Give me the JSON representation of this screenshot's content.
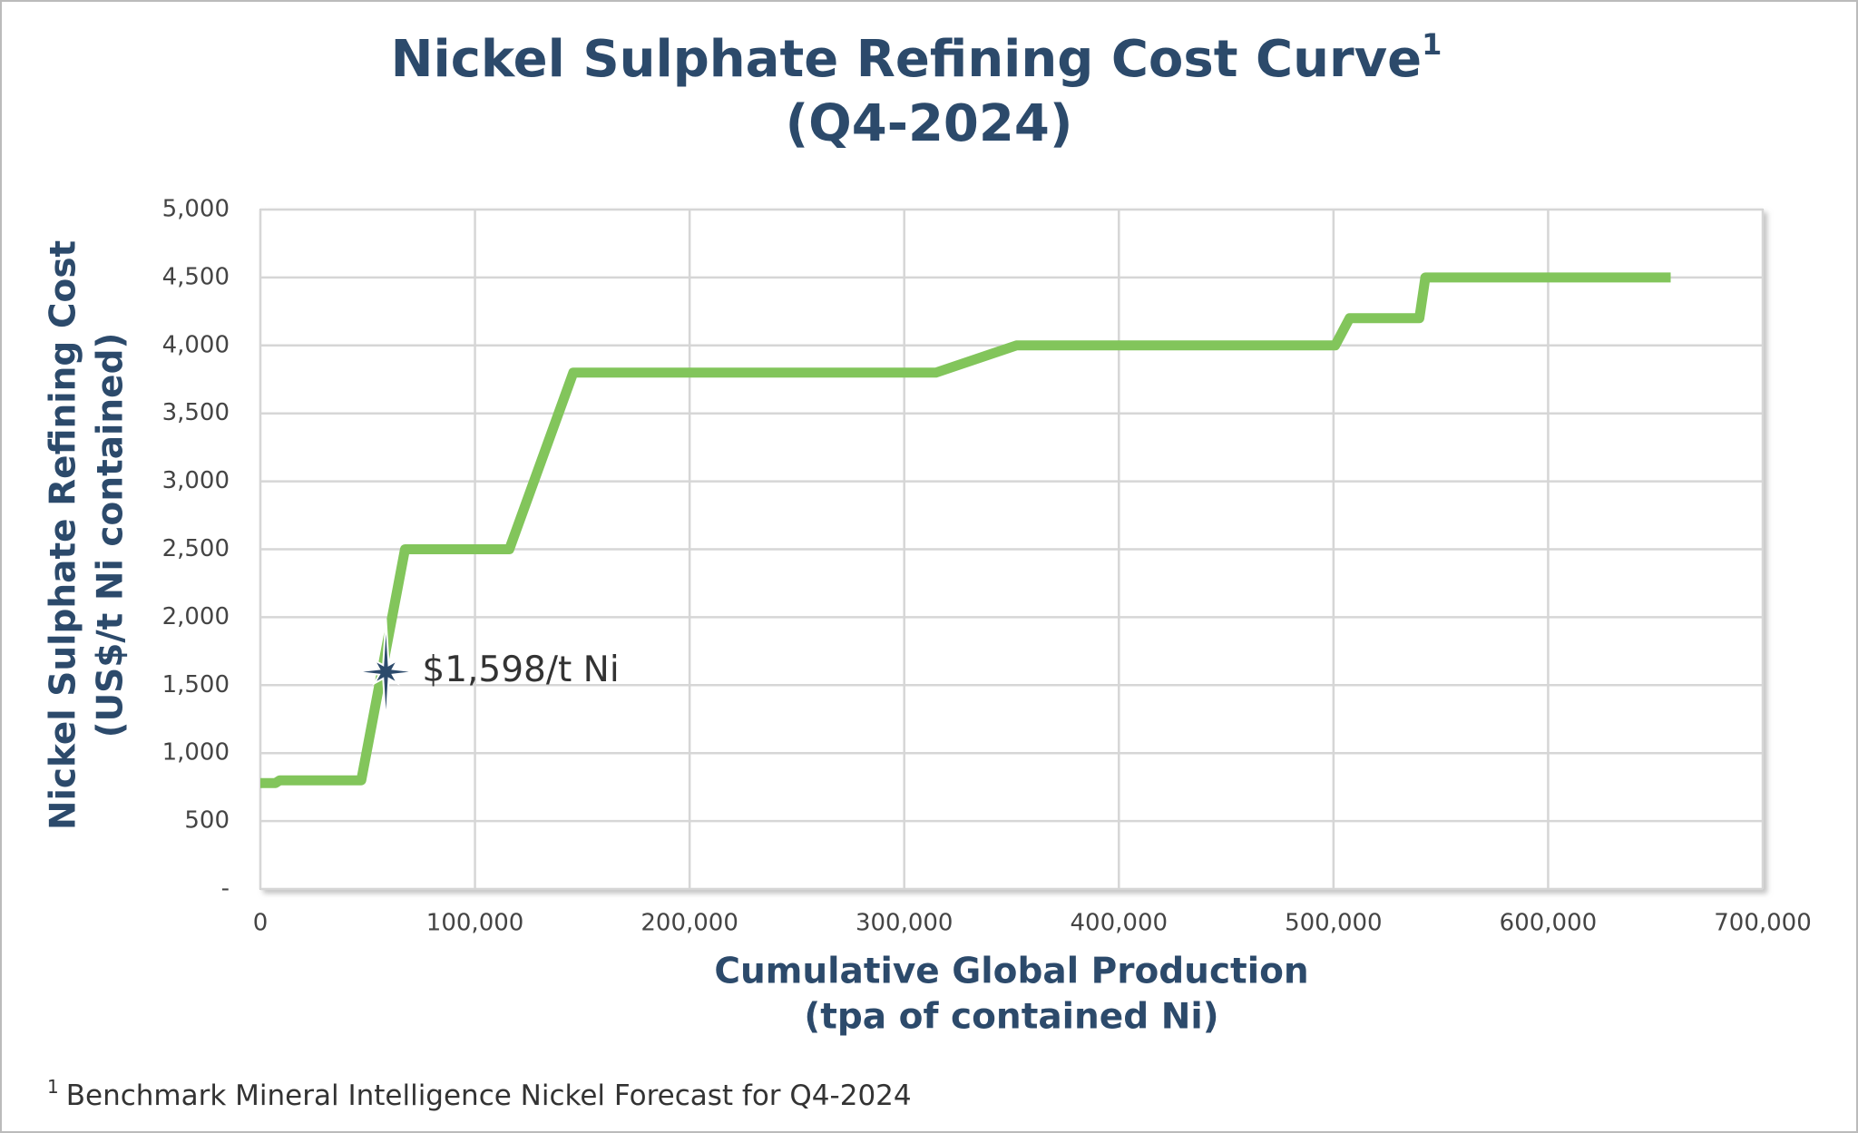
{
  "chart_data": {
    "type": "line",
    "title": "Nickel Sulphate Refining Cost Curve",
    "title_superscript": "1",
    "subtitle": "(Q4-2024)",
    "y_label": [
      "Nickel Sulphate Refining Cost",
      "(US$/t Ni contained)"
    ],
    "x_label": [
      "Cumulative Global Production",
      "(tpa of contained Ni)"
    ],
    "x": [
      0,
      7000,
      9000,
      47000,
      67400,
      116000,
      145800,
      314700,
      352300,
      500800,
      507500,
      540000,
      542800,
      657100
    ],
    "values": [
      780,
      780,
      800,
      800,
      2500,
      2500,
      3800,
      3800,
      4000,
      4000,
      4200,
      4200,
      4500,
      4500
    ],
    "color": "#82c55b",
    "xlim": [
      0,
      700000
    ],
    "xticks": [
      0,
      {
        "value": 100000,
        "label": "100,000"
      },
      {
        "value": 200000,
        "label": "200,000"
      },
      {
        "value": 300000,
        "label": "300,000"
      },
      {
        "value": 400000,
        "label": "400,000"
      },
      {
        "value": 500000,
        "label": "500,000"
      },
      {
        "value": 600000,
        "label": "600,000"
      },
      {
        "value": 700000,
        "label": "700,000"
      }
    ],
    "ylim": [
      0,
      5000
    ],
    "yticks": [
      {
        "value": 0,
        "label": "-"
      },
      500,
      {
        "value": 1000,
        "label": "1,000"
      },
      {
        "value": 1500,
        "label": "1,500"
      },
      {
        "value": 2000,
        "label": "2,000"
      },
      {
        "value": 2500,
        "label": "2,500"
      },
      {
        "value": 3000,
        "label": "3,000"
      },
      {
        "value": 3500,
        "label": "3,500"
      },
      {
        "value": 4000,
        "label": "4,000"
      },
      {
        "value": 4500,
        "label": "4,500"
      },
      {
        "value": 5000,
        "label": "5,000"
      }
    ],
    "grid": true,
    "annotation": {
      "x": 58500,
      "y": 1598,
      "text": "$1,598/t Ni",
      "color": "#2c4a6b"
    },
    "footnote_marker": "1",
    "footnote": "Benchmark Mineral Intelligence Nickel Forecast for Q4-2024"
  }
}
